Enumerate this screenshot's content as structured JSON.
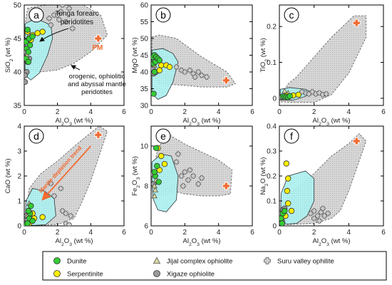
{
  "figure": {
    "legend": [
      {
        "label": "Dunite",
        "marker": "circle",
        "fill": "#33cc33"
      },
      {
        "label": "Serpentinite",
        "marker": "circle",
        "fill": "#ffee00"
      },
      {
        "label": "Jijal complex ophiolite",
        "marker": "triangle",
        "fill": "#d9d9a0"
      },
      {
        "label": "Xigaze ophiolite",
        "marker": "circle",
        "fill": "#9a9a9a"
      },
      {
        "label": "Suru valley ophilite",
        "marker": "cross",
        "fill": "#d0d0d0"
      }
    ],
    "colors": {
      "dunite": "#33cc33",
      "serpentinite": "#ffee00",
      "jijal": "#d9d9a0",
      "xigaze": "#9a9a9a",
      "suru": "#d0d0d0",
      "pm": "#f26a30",
      "cyan_field": "#aef0f0",
      "gray_field": "#d6d6d6",
      "arrow": "#f26a30"
    },
    "annotations": {
      "tonga": "Tonga forearc peridotites",
      "mantle_field": "orogenic, ophiolitic and abyssal mantle peridotites",
      "pm": "PM",
      "depletion": "Mantle depletion trend"
    }
  },
  "chart_data": [
    {
      "id": "a",
      "panel_label": "a",
      "type": "scatter",
      "xlabel": "Al2O3 (wt %)",
      "ylabel": "SiO2 (wt %)",
      "xlim": [
        0,
        6
      ],
      "ylim": [
        35,
        50
      ],
      "xticks": [
        0,
        2,
        4,
        6
      ],
      "yticks": [
        35,
        40,
        45,
        50
      ],
      "series": [
        {
          "name": "Dunite",
          "points": [
            [
              0.1,
              44.5
            ],
            [
              0.15,
              43.5
            ],
            [
              0.2,
              46.3
            ],
            [
              0.25,
              43.0
            ],
            [
              0.3,
              45.0
            ],
            [
              0.35,
              44.0
            ],
            [
              0.5,
              45.3
            ],
            [
              0.1,
              42.0
            ],
            [
              0.25,
              41.5
            ]
          ]
        },
        {
          "name": "Serpentinite",
          "points": [
            [
              0.5,
              45.5
            ],
            [
              0.8,
              45.8
            ],
            [
              1.1,
              46.0
            ],
            [
              0.4,
              44.8
            ],
            [
              0.2,
              46.0
            ]
          ]
        },
        {
          "name": "Jijal complex ophiolite",
          "points": [
            [
              0.15,
              42.5
            ],
            [
              0.2,
              44.5
            ],
            [
              0.3,
              45.5
            ]
          ]
        },
        {
          "name": "Xigaze ophiolite",
          "points": [
            [
              0.1,
              43.0
            ],
            [
              0.2,
              41.5
            ],
            [
              0.05,
              38.5
            ],
            [
              0.15,
              40.0
            ],
            [
              0.3,
              42.0
            ],
            [
              0.05,
              39.5
            ]
          ]
        },
        {
          "name": "Suru valley ophilite",
          "points": [
            [
              1.5,
              48.0
            ],
            [
              1.8,
              48.5
            ],
            [
              2.0,
              48.5
            ],
            [
              2.2,
              49.0
            ],
            [
              2.5,
              47.5
            ],
            [
              2.3,
              50.0
            ],
            [
              2.7,
              49.5
            ],
            [
              1.6,
              47.0
            ],
            [
              2.9,
              46.5
            ],
            [
              2.1,
              47.8
            ]
          ]
        },
        {
          "name": "PM",
          "points": [
            [
              4.45,
              45.0
            ]
          ]
        }
      ]
    },
    {
      "id": "b",
      "panel_label": "b",
      "type": "scatter",
      "xlabel": "Al2O3 (wt %)",
      "ylabel": "MgO (wt %)",
      "xlim": [
        0,
        6
      ],
      "ylim": [
        30,
        60
      ],
      "xticks": [
        0,
        2,
        4,
        6
      ],
      "yticks": [
        30,
        35,
        40,
        45,
        50,
        55,
        60
      ],
      "series": [
        {
          "name": "Dunite",
          "points": [
            [
              0.1,
              44.5
            ],
            [
              0.15,
              42.5
            ],
            [
              0.2,
              45.0
            ],
            [
              0.25,
              43.0
            ],
            [
              0.3,
              44.5
            ],
            [
              0.4,
              44.0
            ],
            [
              0.5,
              43.5
            ],
            [
              0.15,
              33.5
            ],
            [
              0.2,
              40.0
            ]
          ]
        },
        {
          "name": "Serpentinite",
          "points": [
            [
              0.6,
              42.0
            ],
            [
              0.9,
              42.0
            ],
            [
              1.1,
              41.5
            ],
            [
              0.5,
              40.5
            ]
          ]
        },
        {
          "name": "Jijal complex ophiolite",
          "points": [
            [
              0.2,
              42.0
            ],
            [
              0.3,
              44.0
            ]
          ]
        },
        {
          "name": "Xigaze ophiolite",
          "points": [
            [
              0.1,
              41.0
            ],
            [
              0.15,
              39.5
            ],
            [
              0.3,
              40.0
            ],
            [
              0.05,
              42.5
            ]
          ]
        },
        {
          "name": "Suru valley ophilite",
          "points": [
            [
              1.8,
              40.5
            ],
            [
              2.0,
              40.0
            ],
            [
              2.3,
              40.5
            ],
            [
              2.5,
              39.5
            ],
            [
              2.8,
              40.0
            ],
            [
              3.0,
              39.0
            ],
            [
              2.6,
              38.5
            ],
            [
              1.5,
              41.5
            ],
            [
              3.3,
              38.5
            ]
          ]
        },
        {
          "name": "PM",
          "points": [
            [
              4.45,
              37.5
            ]
          ]
        }
      ]
    },
    {
      "id": "c",
      "panel_label": "c",
      "type": "scatter",
      "xlabel": "Al2O3 (wt %)",
      "ylabel": "TiO2 (wt %)",
      "xlim": [
        0,
        6
      ],
      "ylim": [
        -0.02,
        0.26
      ],
      "xticks": [
        0,
        2,
        4,
        6
      ],
      "yticks": [
        0,
        0.1,
        0.2
      ],
      "series": [
        {
          "name": "Dunite",
          "points": [
            [
              0.2,
              0.005
            ],
            [
              0.3,
              0.005
            ],
            [
              0.4,
              0.004
            ],
            [
              0.5,
              0.003
            ],
            [
              0.6,
              0.006
            ]
          ]
        },
        {
          "name": "Serpentinite",
          "points": [
            [
              0.4,
              0.008
            ],
            [
              0.8,
              0.008
            ],
            [
              1.1,
              0.01
            ]
          ]
        },
        {
          "name": "Jijal complex ophiolite",
          "points": [
            [
              0.3,
              0.02
            ],
            [
              0.5,
              0.015
            ]
          ]
        },
        {
          "name": "Xigaze ophiolite",
          "points": [
            [
              0.1,
              0.003
            ]
          ]
        },
        {
          "name": "Suru valley ophilite",
          "points": [
            [
              1.5,
              0.015
            ],
            [
              1.7,
              0.012
            ],
            [
              1.9,
              0.018
            ],
            [
              2.1,
              0.012
            ],
            [
              2.3,
              0.015
            ],
            [
              2.5,
              0.01
            ],
            [
              2.7,
              0.012
            ],
            [
              1.3,
              0.018
            ]
          ]
        },
        {
          "name": "PM",
          "points": [
            [
              4.45,
              0.21
            ]
          ]
        }
      ]
    },
    {
      "id": "d",
      "panel_label": "d",
      "type": "scatter",
      "xlabel": "Al2O3 (wt %)",
      "ylabel": "CaO (wt %)",
      "xlim": [
        0,
        6
      ],
      "ylim": [
        0,
        4
      ],
      "xticks": [
        0,
        2,
        4,
        6
      ],
      "yticks": [
        0,
        1,
        2,
        3,
        4
      ],
      "series": [
        {
          "name": "Dunite",
          "points": [
            [
              0.1,
              0.05
            ],
            [
              0.2,
              0.1
            ],
            [
              0.3,
              0.3
            ],
            [
              0.35,
              0.5
            ],
            [
              0.4,
              0.8
            ],
            [
              0.5,
              0.2
            ],
            [
              0.25,
              0.6
            ]
          ]
        },
        {
          "name": "Serpentinite",
          "points": [
            [
              0.5,
              0.5
            ],
            [
              0.6,
              0.3
            ],
            [
              1.1,
              0.35
            ],
            [
              0.3,
              0.1
            ]
          ]
        },
        {
          "name": "Jijal complex ophiolite",
          "points": [
            [
              0.2,
              0.4
            ],
            [
              0.3,
              0.9
            ]
          ]
        },
        {
          "name": "Xigaze ophiolite",
          "points": [
            [
              0.1,
              0.1
            ],
            [
              0.2,
              0.05
            ],
            [
              0.15,
              0.4
            ],
            [
              0.3,
              0.15
            ]
          ]
        },
        {
          "name": "Suru valley ophilite",
          "points": [
            [
              1.6,
              1.7
            ],
            [
              2.2,
              1.5
            ],
            [
              2.3,
              0.6
            ],
            [
              2.5,
              0.5
            ],
            [
              2.8,
              0.4
            ],
            [
              2.5,
              0.1
            ],
            [
              2.7,
              0.05
            ],
            [
              1.8,
              1.2
            ]
          ]
        },
        {
          "name": "PM",
          "points": [
            [
              4.45,
              3.65
            ]
          ]
        }
      ]
    },
    {
      "id": "e",
      "panel_label": "e",
      "type": "scatter",
      "xlabel": "Al2O3 (wt %)",
      "ylabel": "Fe2O3 (wt %)",
      "xlim": [
        0,
        6
      ],
      "ylim": [
        6,
        11
      ],
      "xticks": [
        0,
        2,
        4,
        6
      ],
      "yticks": [
        6,
        8,
        10
      ],
      "series": [
        {
          "name": "Dunite",
          "points": [
            [
              0.3,
              9.9
            ],
            [
              0.35,
              9.0
            ],
            [
              0.25,
              8.5
            ],
            [
              0.2,
              8.7
            ],
            [
              0.45,
              8.2
            ]
          ]
        },
        {
          "name": "Serpentinite",
          "points": [
            [
              0.4,
              9.9
            ],
            [
              0.6,
              9.5
            ],
            [
              0.8,
              9.1
            ],
            [
              0.5,
              8.8
            ]
          ]
        },
        {
          "name": "Jijal complex ophiolite",
          "points": [
            [
              0.2,
              8.0
            ],
            [
              0.3,
              8.3
            ],
            [
              0.25,
              7.8
            ],
            [
              0.2,
              7.5
            ]
          ]
        },
        {
          "name": "Xigaze ophiolite",
          "points": [
            [
              0.15,
              8.1
            ],
            [
              0.1,
              8.6
            ]
          ]
        },
        {
          "name": "Suru valley ophilite",
          "points": [
            [
              1.5,
              9.2
            ],
            [
              1.8,
              8.5
            ],
            [
              2.0,
              8.7
            ],
            [
              2.2,
              8.3
            ],
            [
              2.3,
              8.8
            ],
            [
              2.5,
              8.5
            ],
            [
              2.8,
              8.1
            ],
            [
              3.0,
              8.4
            ],
            [
              1.9,
              8.0
            ],
            [
              1.6,
              9.6
            ]
          ]
        },
        {
          "name": "PM",
          "points": [
            [
              4.45,
              8.0
            ]
          ]
        }
      ]
    },
    {
      "id": "f",
      "panel_label": "f",
      "type": "scatter",
      "xlabel": "Al2O3 (wt %)",
      "ylabel": "Na2O (wt %)",
      "xlim": [
        0,
        6
      ],
      "ylim": [
        0,
        0.4
      ],
      "xticks": [
        0,
        2,
        4,
        6
      ],
      "yticks": [
        0,
        0.1,
        0.2,
        0.3,
        0.4
      ],
      "series": [
        {
          "name": "Dunite",
          "points": [
            [
              0.1,
              0.03
            ],
            [
              0.2,
              0.05
            ],
            [
              0.3,
              0.06
            ],
            [
              0.15,
              0.01
            ]
          ]
        },
        {
          "name": "Serpentinite",
          "points": [
            [
              0.4,
              0.25
            ],
            [
              0.5,
              0.19
            ],
            [
              0.45,
              0.14
            ],
            [
              0.5,
              0.09
            ],
            [
              0.35,
              0.04
            ],
            [
              0.7,
              0.06
            ]
          ]
        },
        {
          "name": "Jijal complex ophiolite",
          "points": [
            [
              0.2,
              0.02
            ]
          ]
        },
        {
          "name": "Xigaze ophiolite",
          "points": [
            [
              0.1,
              0.05
            ],
            [
              0.2,
              0.065
            ],
            [
              0.3,
              0.07
            ],
            [
              0.15,
              0.02
            ]
          ]
        },
        {
          "name": "Suru valley ophilite",
          "points": [
            [
              1.8,
              0.05
            ],
            [
              2.0,
              0.06
            ],
            [
              2.2,
              0.04
            ],
            [
              2.4,
              0.055
            ],
            [
              2.6,
              0.04
            ],
            [
              2.8,
              0.05
            ],
            [
              2.0,
              0.03
            ],
            [
              2.5,
              0.07
            ],
            [
              2.3,
              0.02
            ]
          ]
        },
        {
          "name": "PM",
          "points": [
            [
              4.45,
              0.34
            ]
          ]
        }
      ]
    }
  ]
}
